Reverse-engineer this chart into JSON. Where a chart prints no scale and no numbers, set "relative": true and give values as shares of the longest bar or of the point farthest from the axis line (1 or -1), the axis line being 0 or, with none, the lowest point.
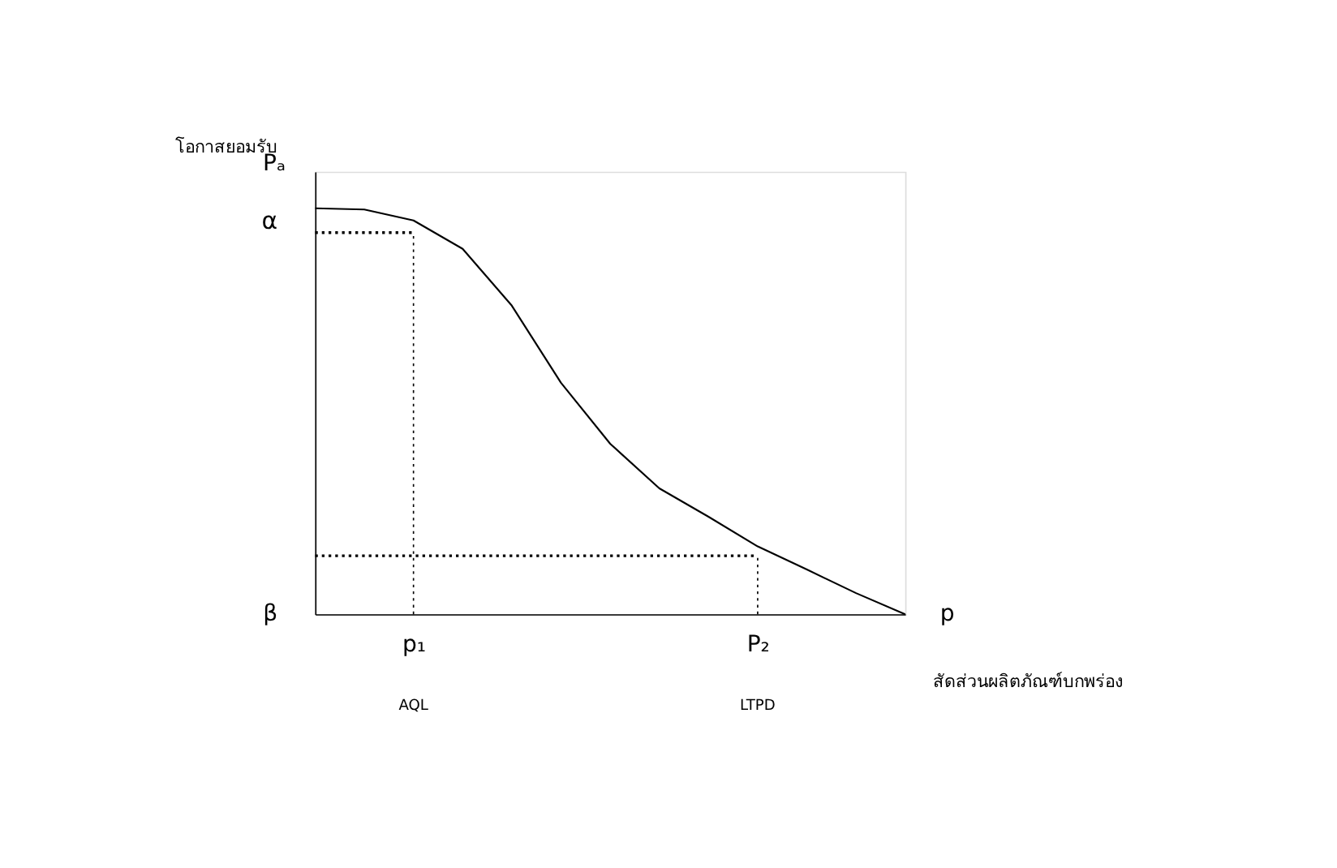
{
  "chart_data": {
    "type": "line",
    "relative": true,
    "ylabel": "โอกาสยอมรับ",
    "xlabel": "สัดส่วนผลิตภัณฑ์บกพร่อง",
    "grid": false,
    "tick_labels": "x",
    "categories": [
      null,
      null,
      "p₁",
      null,
      null,
      null,
      null,
      null,
      null,
      "P₂",
      null,
      null,
      null
    ],
    "series": [
      {
        "color": "#000000",
        "values": [
          1.0,
          0.997,
          0.97,
          0.9,
          0.76,
          0.57,
          0.42,
          0.31,
          0.24,
          0.167,
          0.11,
          0.052,
          0
        ]
      }
    ],
    "ref_lines": [
      {
        "axis": "x",
        "value": "p₁",
        "line_style": "dotted"
      },
      {
        "axis": "x",
        "value": "P₂",
        "line_style": "dotted"
      },
      {
        "axis": "y",
        "value": 0.94,
        "label": "α",
        "line_style": "dotted"
      },
      {
        "axis": "y",
        "value": 0.144,
        "line_style": "dotted"
      }
    ],
    "annotations": [
      "Pₐ",
      "p",
      "β",
      "AQL",
      "LTPD"
    ]
  }
}
